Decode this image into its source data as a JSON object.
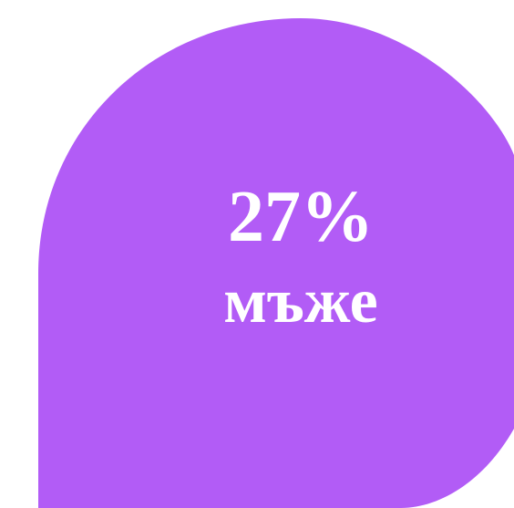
{
  "shape_color": "#b25cf6",
  "background_color": "#ffffff",
  "stat": {
    "value": "27%",
    "label": "мъже"
  }
}
